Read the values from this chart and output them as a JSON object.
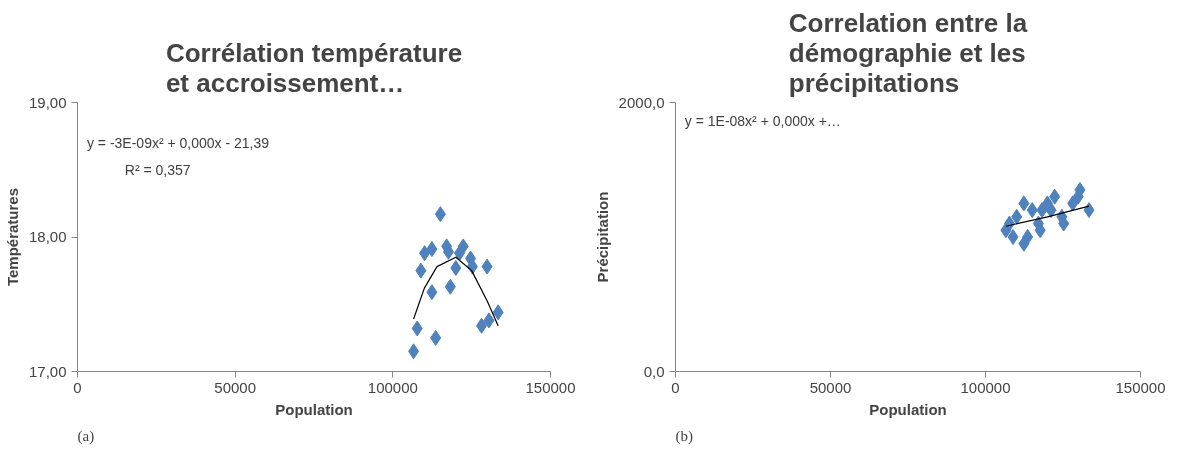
{
  "chart_data": [
    {
      "type": "scatter",
      "title": "Corrélation température et accroissement…",
      "xlabel": "Population",
      "ylabel": "Températures",
      "annotations": [
        "y = -3E-09x² + 0,000x - 21,39",
        "R² = 0,357",
        "(a)"
      ],
      "xlim": [
        0,
        150000
      ],
      "xticks": [
        0,
        50000,
        100000,
        150000
      ],
      "ylim": [
        17,
        19
      ],
      "yticks": [
        {
          "value": 17,
          "label": "17,00"
        },
        {
          "value": 18,
          "label": "18,00"
        },
        {
          "value": 19,
          "label": "19,00"
        }
      ],
      "grid": false,
      "series": [
        {
          "marker": "diamond",
          "color": "#4f81bd",
          "x": [
            115080,
            110070,
            112390,
            117070,
            122320,
            117640,
            121140,
            124640,
            108890,
            119980,
            125230,
            129890,
            112390,
            118230,
            107730,
            113580,
            106580,
            128140,
            130480,
            133390
          ],
          "values": [
            18.17,
            17.88,
            17.91,
            17.93,
            17.93,
            17.89,
            17.88,
            17.84,
            17.75,
            17.77,
            17.78,
            17.78,
            17.59,
            17.63,
            17.32,
            17.25,
            17.15,
            17.34,
            17.38,
            17.44
          ]
        },
        {
          "type": "line",
          "color": "#000000",
          "x": [
            106580,
            110000,
            114000,
            120000,
            125000,
            130000,
            133390
          ],
          "values": [
            17.39,
            17.62,
            17.78,
            17.85,
            17.75,
            17.52,
            17.34
          ]
        }
      ]
    },
    {
      "type": "scatter",
      "title": "Correlation entre la démographie et les précipitations",
      "xlabel": "Population",
      "ylabel": "Précipitation",
      "annotations": [
        "y = 1E-08x² + 0,000x +…",
        "(b)"
      ],
      "xlim": [
        0,
        150000
      ],
      "xticks": [
        0,
        50000,
        100000,
        150000
      ],
      "ylim": [
        0,
        2000
      ],
      "yticks": [
        {
          "value": 0,
          "label": "0,0"
        },
        {
          "value": 2000,
          "label": "2000,0"
        }
      ],
      "grid": false,
      "series": [
        {
          "marker": "diamond",
          "color": "#4f81bd",
          "x": [
            115080,
            110070,
            112390,
            117070,
            122320,
            117640,
            121140,
            124640,
            108890,
            119980,
            125230,
            129890,
            112390,
            118230,
            107730,
            113580,
            106580,
            128140,
            130480,
            133390
          ],
          "values": [
            1200,
            1150,
            1250,
            1100,
            1300,
            1050,
            1200,
            1150,
            1000,
            1250,
            1100,
            1300,
            950,
            1200,
            1100,
            1000,
            1050,
            1250,
            1350,
            1200
          ]
        },
        {
          "type": "line",
          "color": "#000000",
          "x": [
            106580,
            120000,
            133390
          ],
          "values": [
            1080,
            1150,
            1230
          ]
        }
      ]
    }
  ]
}
